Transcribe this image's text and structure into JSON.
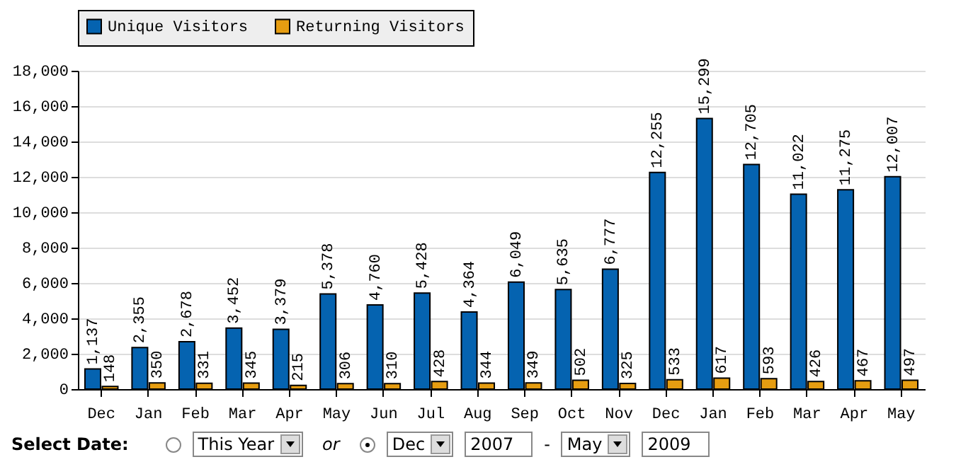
{
  "chart_data": {
    "type": "bar",
    "categories": [
      "Dec",
      "Jan",
      "Feb",
      "Mar",
      "Apr",
      "May",
      "Jun",
      "Jul",
      "Aug",
      "Sep",
      "Oct",
      "Nov",
      "Dec",
      "Jan",
      "Feb",
      "Mar",
      "Apr",
      "May"
    ],
    "series": [
      {
        "name": "Unique Visitors",
        "color": "#0563b0",
        "values": [
          1137,
          2355,
          2678,
          3452,
          3379,
          5378,
          4760,
          5428,
          4364,
          6049,
          5635,
          6777,
          12255,
          15299,
          12705,
          11022,
          11275,
          12007
        ],
        "value_labels": [
          "1,137",
          "2,355",
          "2,678",
          "3,452",
          "3,379",
          "5,378",
          "4,760",
          "5,428",
          "4,364",
          "6,049",
          "5,635",
          "6,777",
          "12,255",
          "15,299",
          "12,705",
          "11,022",
          "11,275",
          "12,007"
        ]
      },
      {
        "name": "Returning Visitors",
        "color": "#e69d11",
        "values": [
          148,
          350,
          331,
          345,
          215,
          306,
          310,
          428,
          344,
          349,
          502,
          325,
          533,
          617,
          593,
          426,
          467,
          497
        ],
        "value_labels": [
          "148",
          "350",
          "331",
          "345",
          "215",
          "306",
          "310",
          "428",
          "344",
          "349",
          "502",
          "325",
          "533",
          "617",
          "593",
          "426",
          "467",
          "497"
        ]
      }
    ],
    "ylim": [
      0,
      18000
    ],
    "yticks": [
      0,
      {
        "value": 2000,
        "label": "2,000"
      },
      {
        "value": 4000,
        "label": "4,000"
      },
      {
        "value": 6000,
        "label": "6,000"
      },
      {
        "value": 8000,
        "label": "8,000"
      },
      {
        "value": 10000,
        "label": "10,000"
      },
      {
        "value": 12000,
        "label": "12,000"
      },
      {
        "value": 14000,
        "label": "14,000"
      },
      {
        "value": 16000,
        "label": "16,000"
      },
      {
        "value": 18000,
        "label": "18,000"
      }
    ],
    "grid": "y",
    "legend": "top",
    "annotations": [
      "Select Date:",
      "This Year",
      "or",
      "Dec",
      "2007",
      "-",
      "May",
      "2009"
    ]
  }
}
